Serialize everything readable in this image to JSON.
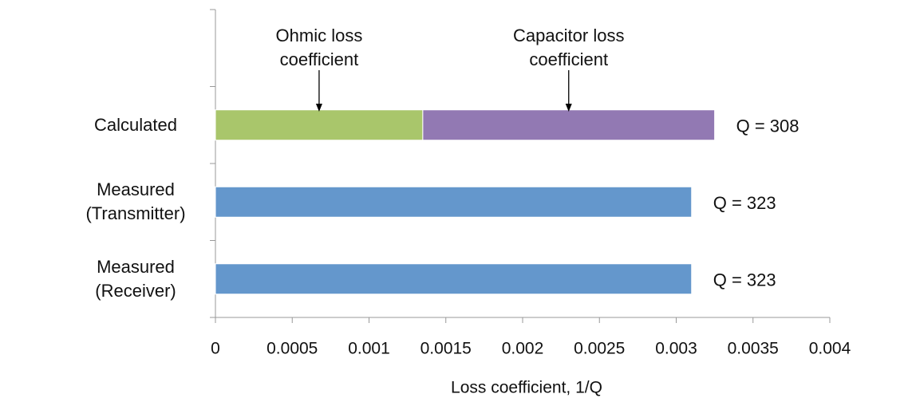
{
  "chart_data": {
    "type": "bar",
    "orientation": "horizontal",
    "stacked": true,
    "categories": [
      "Calculated",
      "Measured (Transmitter)",
      "Measured (Receiver)"
    ],
    "series": [
      {
        "name": "Ohmic loss coefficient",
        "color": "#a9c66b",
        "values": [
          0.00135,
          null,
          null
        ]
      },
      {
        "name": "Capacitor loss coefficient",
        "color": "#9279b3",
        "values": [
          0.0019,
          null,
          null
        ]
      },
      {
        "color": "#6497cc",
        "values": [
          null,
          0.0031,
          0.0031
        ]
      }
    ],
    "bar_labels": [
      "Q = 308",
      "Q = 323",
      "Q = 323"
    ],
    "xlabel": "Loss coefficient, 1/Q",
    "xlim": [
      0,
      0.004
    ],
    "xticks": [
      0,
      0.0005,
      0.001,
      0.0015,
      0.002,
      0.0025,
      0.003,
      0.0035,
      0.004
    ]
  }
}
